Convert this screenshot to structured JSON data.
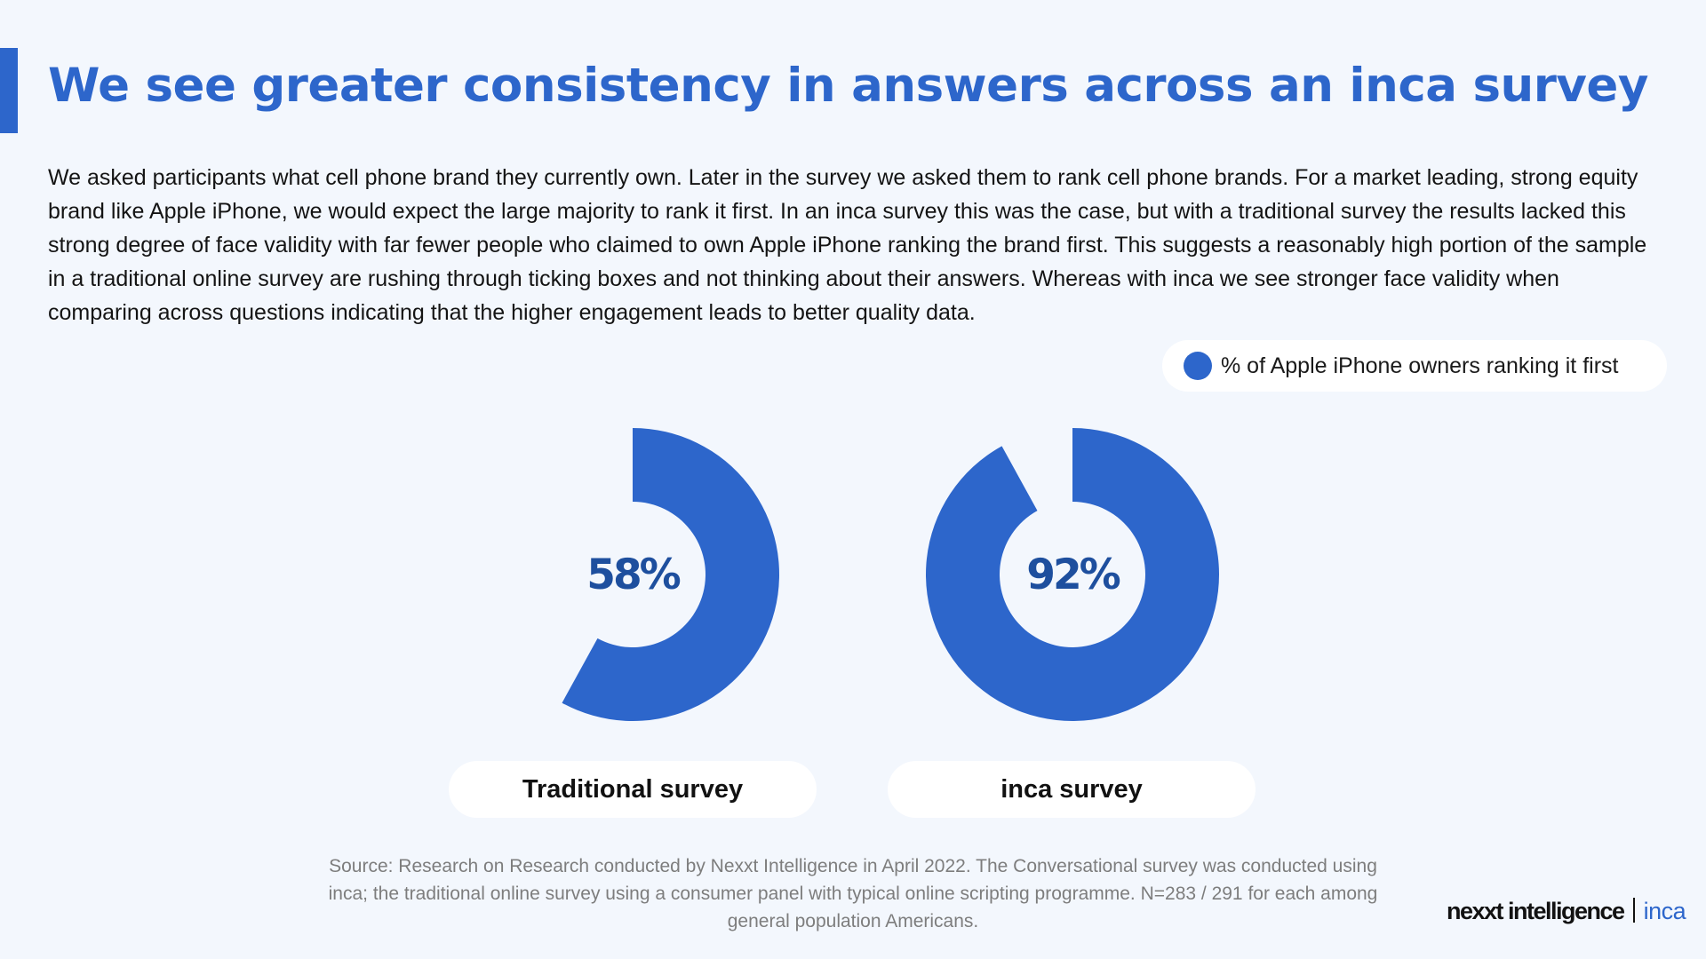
{
  "header": {
    "title": "We see greater consistency in answers across an inca survey"
  },
  "intro": {
    "text": "We asked participants what cell phone brand they currently own. Later in the survey we asked them to rank cell phone brands. For a market leading, strong equity brand like Apple iPhone, we would expect the large majority to rank it first. In an inca survey this was the case, but with a traditional survey the results lacked this strong degree of face validity with far fewer people who claimed to own Apple iPhone ranking the brand first. This suggests a reasonably high portion of the sample in a traditional online survey are rushing through ticking boxes and not thinking about their answers. Whereas with inca we see stronger face validity when comparing across questions indicating that the higher engagement leads to better quality data."
  },
  "colors": {
    "accent": "#2d66cb",
    "value_text": "#1e4f9e",
    "background": "#f3f7fd"
  },
  "chart_data": {
    "type": "pie",
    "variant": "donut",
    "legend": [
      "% of Apple iPhone owners ranking it first"
    ],
    "legend_position": "top-right",
    "series": [
      {
        "name": "Traditional survey",
        "value": 58,
        "label": "58%"
      },
      {
        "name": "inca survey",
        "value": 92,
        "label": "92%"
      }
    ]
  },
  "footer": {
    "source": "Source: Research on Research conducted by Nexxt Intelligence in April 2022. The Conversational survey was conducted using inca; the traditional online survey using a consumer panel with typical online scripting programme. N=283 / 291 for each among general population Americans.",
    "logo_main": "nexxt intelligence",
    "logo_product": "inca"
  }
}
